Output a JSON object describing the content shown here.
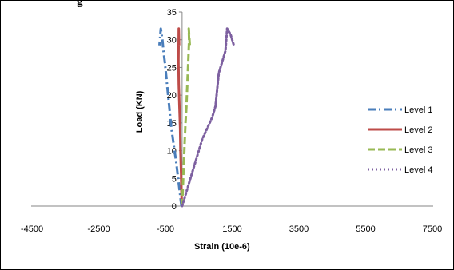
{
  "clipped_heading": "g",
  "chart_data": {
    "type": "line",
    "xlabel": "Strain (10e-6)",
    "ylabel": "Load (KN)",
    "xlim": [
      -4500,
      7500
    ],
    "ylim": [
      0,
      35
    ],
    "xticks": [
      -4500,
      -2500,
      -500,
      1500,
      3500,
      5500,
      7500
    ],
    "yticks": [
      0,
      5,
      10,
      15,
      20,
      25,
      30,
      35
    ],
    "grid": false,
    "legend_position": "right",
    "series": [
      {
        "name": "Level 1",
        "color": "#4a7ebb",
        "dash": "dash-dot",
        "x": [
          -20,
          -60,
          -120,
          -180,
          -250,
          -320,
          -370,
          -420,
          -470,
          -520,
          -560,
          -590,
          -640,
          -680
        ],
        "y": [
          0,
          2,
          5,
          8,
          11,
          14,
          17,
          20,
          23,
          26,
          28,
          30,
          32,
          29
        ]
      },
      {
        "name": "Level 2",
        "color": "#be4b48",
        "dash": "solid",
        "x": [
          -10,
          -20,
          -30,
          -50,
          -60,
          -80,
          -100,
          -110,
          -100,
          -90
        ],
        "y": [
          0,
          3,
          6,
          10,
          14,
          18,
          22,
          26,
          32,
          29
        ]
      },
      {
        "name": "Level 3",
        "color": "#98b954",
        "dash": "dashed",
        "x": [
          0,
          20,
          40,
          60,
          80,
          100,
          130,
          150,
          170,
          190,
          210,
          200,
          230
        ],
        "y": [
          0,
          3,
          6,
          9,
          12,
          15,
          18,
          21,
          24,
          27,
          30,
          32,
          29
        ]
      },
      {
        "name": "Level 4",
        "color": "#7d60a0",
        "dash": "dotted",
        "x": [
          0,
          100,
          200,
          300,
          450,
          600,
          750,
          900,
          1000,
          1050,
          1100,
          1200,
          1300,
          1350,
          1450,
          1550
        ],
        "y": [
          0,
          2,
          4,
          6,
          9,
          12,
          14,
          16,
          18,
          21,
          24,
          26,
          28,
          32,
          31,
          29
        ]
      }
    ]
  }
}
